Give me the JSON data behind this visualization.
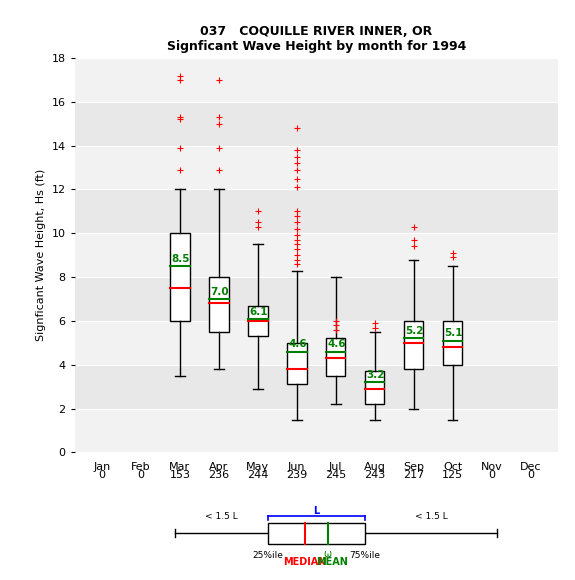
{
  "title1": "037   COQUILLE RIVER INNER, OR",
  "title2": "Signficant Wave Height by month for 1994",
  "ylabel": "Signficant Wave Height, Hs (ft)",
  "months": [
    "Jan",
    "Feb",
    "Mar",
    "Apr",
    "May",
    "Jun",
    "Jul",
    "Aug",
    "Sep",
    "Oct",
    "Nov",
    "Dec"
  ],
  "counts": [
    0,
    0,
    153,
    236,
    244,
    239,
    245,
    243,
    217,
    125,
    0,
    0
  ],
  "ylim": [
    0,
    18
  ],
  "yticks": [
    0,
    2,
    4,
    6,
    8,
    10,
    12,
    14,
    16,
    18
  ],
  "bg_color": "#e8e8e8",
  "stripe_color": "#f2f2f2",
  "box_color": "white",
  "box_edge": "black",
  "median_color": "red",
  "mean_color": "green",
  "flier_color": "red",
  "whisker_color": "black",
  "boxes": {
    "Mar": {
      "q1": 6.0,
      "median": 7.5,
      "q3": 10.0,
      "mean": 8.5,
      "whislo": 3.5,
      "whishi": 12.0,
      "fliers": [
        17.2,
        17.0,
        15.3,
        15.2,
        13.9,
        12.9
      ]
    },
    "Apr": {
      "q1": 5.5,
      "median": 6.8,
      "q3": 8.0,
      "mean": 7.0,
      "whislo": 3.8,
      "whishi": 12.0,
      "fliers": [
        17.0,
        15.3,
        15.0,
        13.9,
        12.9
      ]
    },
    "May": {
      "q1": 5.3,
      "median": 6.0,
      "q3": 6.7,
      "mean": 6.1,
      "whislo": 2.9,
      "whishi": 9.5,
      "fliers": [
        11.0,
        10.5,
        10.3
      ]
    },
    "Jun": {
      "q1": 3.1,
      "median": 3.8,
      "q3": 5.0,
      "mean": 4.6,
      "whislo": 1.5,
      "whishi": 8.3,
      "fliers": [
        14.8,
        13.8,
        13.5,
        13.2,
        12.9,
        12.5,
        12.1,
        11.0,
        10.8,
        10.5,
        10.2,
        9.9,
        9.7,
        9.5,
        9.3,
        9.0,
        8.8,
        8.6
      ]
    },
    "Jul": {
      "q1": 3.5,
      "median": 4.3,
      "q3": 5.2,
      "mean": 4.6,
      "whislo": 2.2,
      "whishi": 8.0,
      "fliers": [
        6.0,
        5.8,
        5.6
      ]
    },
    "Aug": {
      "q1": 2.2,
      "median": 2.9,
      "q3": 3.7,
      "mean": 3.2,
      "whislo": 1.5,
      "whishi": 5.5,
      "fliers": [
        5.9,
        5.7
      ]
    },
    "Sep": {
      "q1": 3.8,
      "median": 5.0,
      "q3": 6.0,
      "mean": 5.2,
      "whislo": 2.0,
      "whishi": 8.8,
      "fliers": [
        10.3,
        9.7,
        9.4
      ]
    },
    "Oct": {
      "q1": 4.0,
      "median": 4.8,
      "q3": 6.0,
      "mean": 5.1,
      "whislo": 1.5,
      "whishi": 8.5,
      "fliers": [
        9.1,
        8.9
      ]
    }
  }
}
